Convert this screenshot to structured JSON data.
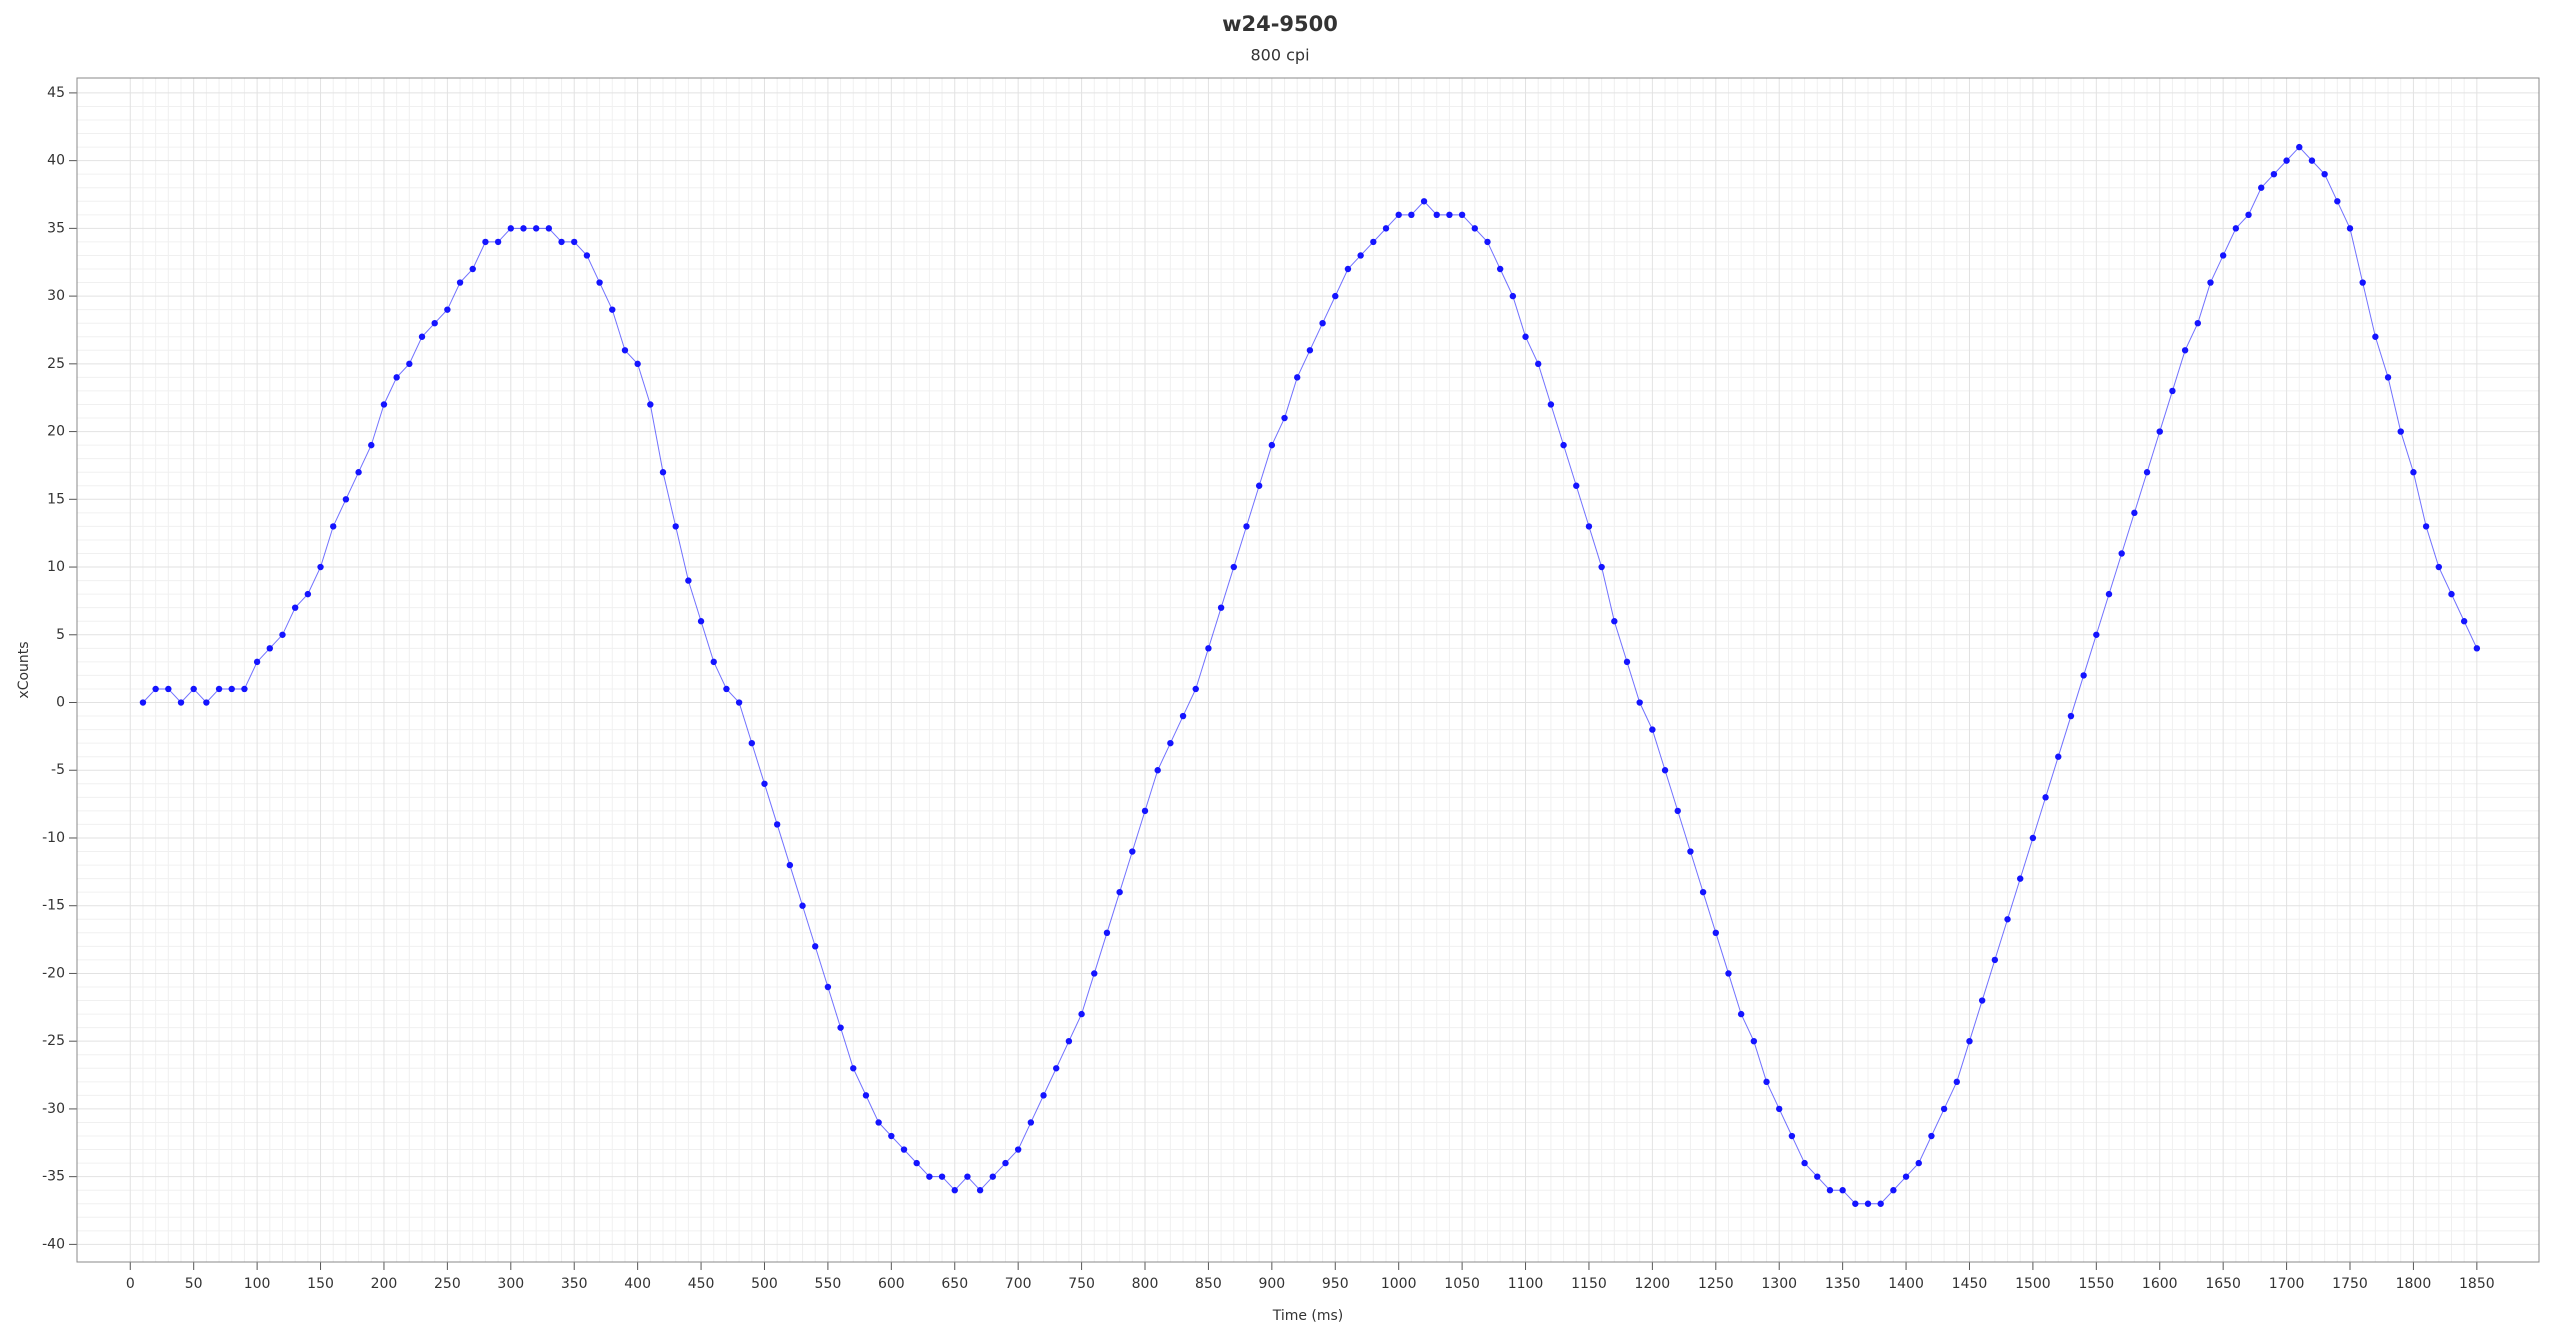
{
  "chart_data": {
    "type": "scatter",
    "title": "w24-9500",
    "subtitle": "800 cpi",
    "x_label": "Time (ms)",
    "y_label": "xCounts",
    "xlim": [
      -42,
      1899
    ],
    "ylim": [
      -41.3,
      46.1
    ],
    "xticks": [
      0,
      50,
      100,
      150,
      200,
      250,
      300,
      350,
      400,
      450,
      500,
      550,
      600,
      650,
      700,
      750,
      800,
      850,
      900,
      950,
      1000,
      1050,
      1100,
      1150,
      1200,
      1250,
      1300,
      1350,
      1400,
      1450,
      1500,
      1550,
      1600,
      1650,
      1700,
      1750,
      1800,
      1850
    ],
    "yticks": [
      -40,
      -35,
      -30,
      -25,
      -20,
      -15,
      -10,
      -5,
      0,
      5,
      10,
      15,
      20,
      25,
      30,
      35,
      40,
      45
    ],
    "grid": true,
    "minor_grid": true,
    "show_line": true,
    "series": [
      {
        "color": "#1414ff",
        "x": [
          10,
          20,
          30,
          40,
          50,
          60,
          70,
          80,
          90,
          100,
          110,
          120,
          130,
          140,
          150,
          160,
          170,
          180,
          190,
          200,
          210,
          220,
          230,
          240,
          250,
          260,
          270,
          280,
          290,
          300,
          310,
          320,
          330,
          340,
          350,
          360,
          370,
          380,
          390,
          400,
          410,
          420,
          430,
          440,
          450,
          460,
          470,
          480,
          490,
          500,
          510,
          520,
          530,
          540,
          550,
          560,
          570,
          580,
          590,
          600,
          610,
          620,
          630,
          640,
          650,
          660,
          670,
          680,
          690,
          700,
          710,
          720,
          730,
          740,
          750,
          760,
          770,
          780,
          790,
          800,
          810,
          820,
          830,
          840,
          850,
          860,
          870,
          880,
          890,
          900,
          910,
          920,
          930,
          940,
          950,
          960,
          970,
          980,
          990,
          1000,
          1010,
          1020,
          1030,
          1040,
          1050,
          1060,
          1070,
          1080,
          1090,
          1100,
          1110,
          1120,
          1130,
          1140,
          1150,
          1160,
          1170,
          1180,
          1190,
          1200,
          1210,
          1220,
          1230,
          1240,
          1250,
          1260,
          1270,
          1280,
          1290,
          1300,
          1310,
          1320,
          1330,
          1340,
          1350,
          1360,
          1370,
          1380,
          1390,
          1400,
          1410,
          1420,
          1430,
          1440,
          1450,
          1460,
          1470,
          1480,
          1490,
          1500,
          1510,
          1520,
          1530,
          1540,
          1550,
          1560,
          1570,
          1580,
          1590,
          1600,
          1610,
          1620,
          1630,
          1640,
          1650,
          1660,
          1670,
          1680,
          1690,
          1700,
          1710,
          1720,
          1730,
          1740,
          1750,
          1760,
          1770,
          1780,
          1790,
          1800,
          1810,
          1820,
          1830,
          1840,
          1850
        ],
        "values": [
          0,
          1,
          1,
          0,
          1,
          0,
          1,
          1,
          1,
          3,
          4,
          5,
          7,
          8,
          10,
          13,
          15,
          17,
          19,
          22,
          24,
          25,
          27,
          28,
          29,
          31,
          32,
          34,
          34,
          35,
          35,
          35,
          35,
          34,
          34,
          33,
          31,
          29,
          26,
          25,
          22,
          17,
          13,
          9,
          6,
          3,
          1,
          0,
          -3,
          -6,
          -9,
          -12,
          -15,
          -18,
          -21,
          -24,
          -27,
          -29,
          -31,
          -32,
          -33,
          -34,
          -35,
          -35,
          -36,
          -35,
          -36,
          -35,
          -34,
          -33,
          -31,
          -29,
          -27,
          -25,
          -23,
          -20,
          -17,
          -14,
          -11,
          -8,
          -5,
          -3,
          -1,
          1,
          4,
          7,
          10,
          13,
          16,
          19,
          21,
          24,
          26,
          28,
          30,
          32,
          33,
          34,
          35,
          36,
          36,
          37,
          36,
          36,
          36,
          35,
          34,
          32,
          30,
          27,
          25,
          22,
          19,
          16,
          13,
          10,
          6,
          3,
          0,
          -2,
          -5,
          -8,
          -11,
          -14,
          -17,
          -20,
          -23,
          -25,
          -28,
          -30,
          -32,
          -34,
          -35,
          -36,
          -36,
          -37,
          -37,
          -37,
          -36,
          -35,
          -34,
          -32,
          -30,
          -28,
          -25,
          -22,
          -19,
          -16,
          -13,
          -10,
          -7,
          -4,
          -1,
          2,
          5,
          8,
          11,
          14,
          17,
          20,
          23,
          26,
          28,
          31,
          33,
          35,
          36,
          38,
          39,
          40,
          41,
          40,
          39,
          37,
          35,
          31,
          27,
          24,
          20,
          17,
          13,
          10,
          8,
          6,
          4
        ]
      }
    ]
  }
}
